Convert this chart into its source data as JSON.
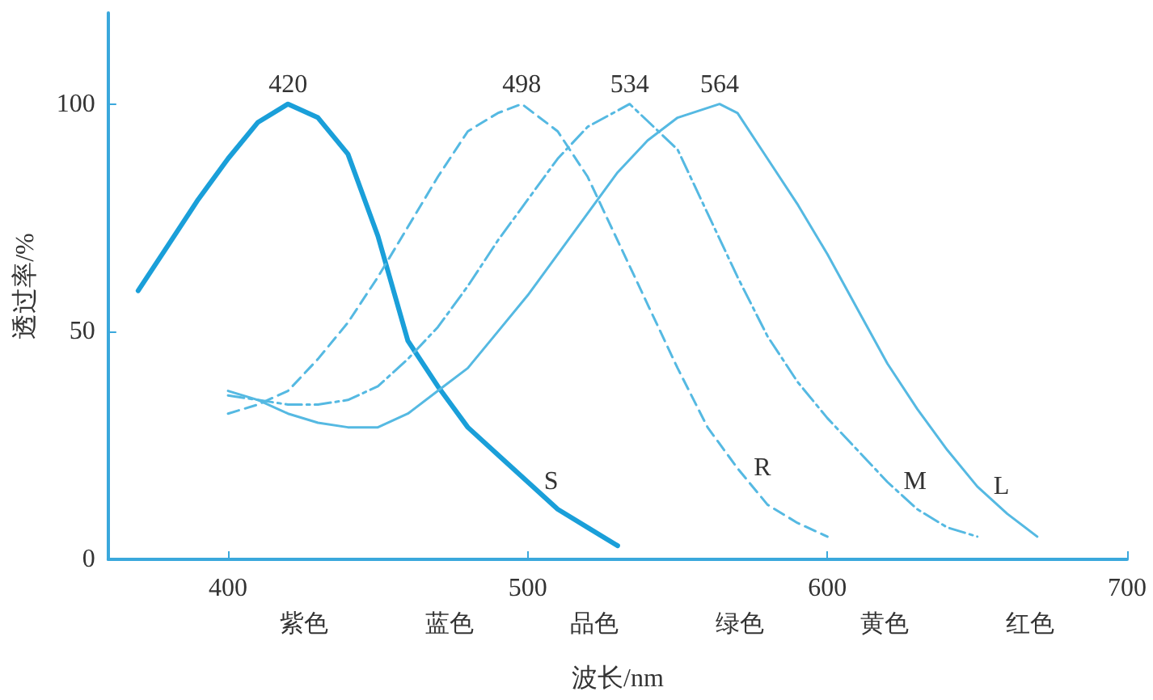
{
  "chart_data": {
    "type": "line",
    "xlabel": "波长/nm",
    "ylabel": "透过率/%",
    "xlim": [
      360,
      700
    ],
    "xticks": [
      400,
      500,
      600,
      700
    ],
    "ylim": [
      0,
      120
    ],
    "yticks": [
      0,
      50,
      100
    ],
    "grid": false,
    "legend": false,
    "marker": "none",
    "series": [
      {
        "name": "S",
        "color": "#1a9fd9",
        "line_style": "solid",
        "x": [
          370,
          380,
          390,
          400,
          410,
          420,
          430,
          440,
          450,
          460,
          470,
          480,
          490,
          500,
          510,
          520,
          530
        ],
        "values": [
          59,
          69,
          79,
          88,
          96,
          100,
          97,
          89,
          71,
          48,
          38,
          29,
          23,
          17,
          11,
          7,
          3
        ]
      },
      {
        "name": "R",
        "color": "#55b9e2",
        "line_style": "dashed",
        "x": [
          400,
          410,
          420,
          430,
          440,
          450,
          460,
          470,
          480,
          490,
          498,
          510,
          520,
          530,
          540,
          550,
          560,
          570,
          580,
          590,
          600
        ],
        "values": [
          32,
          34,
          37,
          44,
          52,
          62,
          73,
          84,
          94,
          98,
          100,
          94,
          84,
          70,
          56,
          42,
          29,
          20,
          12,
          8,
          5
        ]
      },
      {
        "name": "M",
        "color": "#55b9e2",
        "line_style": "dashdot",
        "x": [
          400,
          410,
          420,
          430,
          440,
          450,
          460,
          470,
          480,
          490,
          500,
          510,
          520,
          534,
          550,
          560,
          570,
          580,
          590,
          600,
          610,
          620,
          630,
          640,
          650
        ],
        "values": [
          36,
          35,
          34,
          34,
          35,
          38,
          44,
          51,
          60,
          70,
          79,
          88,
          95,
          100,
          90,
          76,
          62,
          49,
          39,
          31,
          24,
          17,
          11,
          7,
          5
        ]
      },
      {
        "name": "L",
        "color": "#55b9e2",
        "line_style": "solid",
        "x": [
          400,
          410,
          420,
          430,
          440,
          450,
          460,
          470,
          480,
          490,
          500,
          510,
          520,
          530,
          540,
          550,
          564,
          570,
          580,
          590,
          600,
          610,
          620,
          630,
          640,
          650,
          660,
          670
        ],
        "values": [
          37,
          35,
          32,
          30,
          29,
          29,
          32,
          37,
          42,
          50,
          58,
          67,
          76,
          85,
          92,
          97,
          100,
          98,
          88,
          78,
          67,
          55,
          43,
          33,
          24,
          16,
          10,
          5
        ]
      }
    ],
    "annotations": [
      {
        "text": "420",
        "x": 420,
        "y": 100
      },
      {
        "text": "498",
        "x": 498,
        "y": 100
      },
      {
        "text": "534",
        "x": 534,
        "y": 100
      },
      {
        "text": "564",
        "x": 564,
        "y": 100
      },
      "紫色",
      "蓝色",
      "品色",
      "绿色",
      "黄色",
      "红色"
    ]
  }
}
